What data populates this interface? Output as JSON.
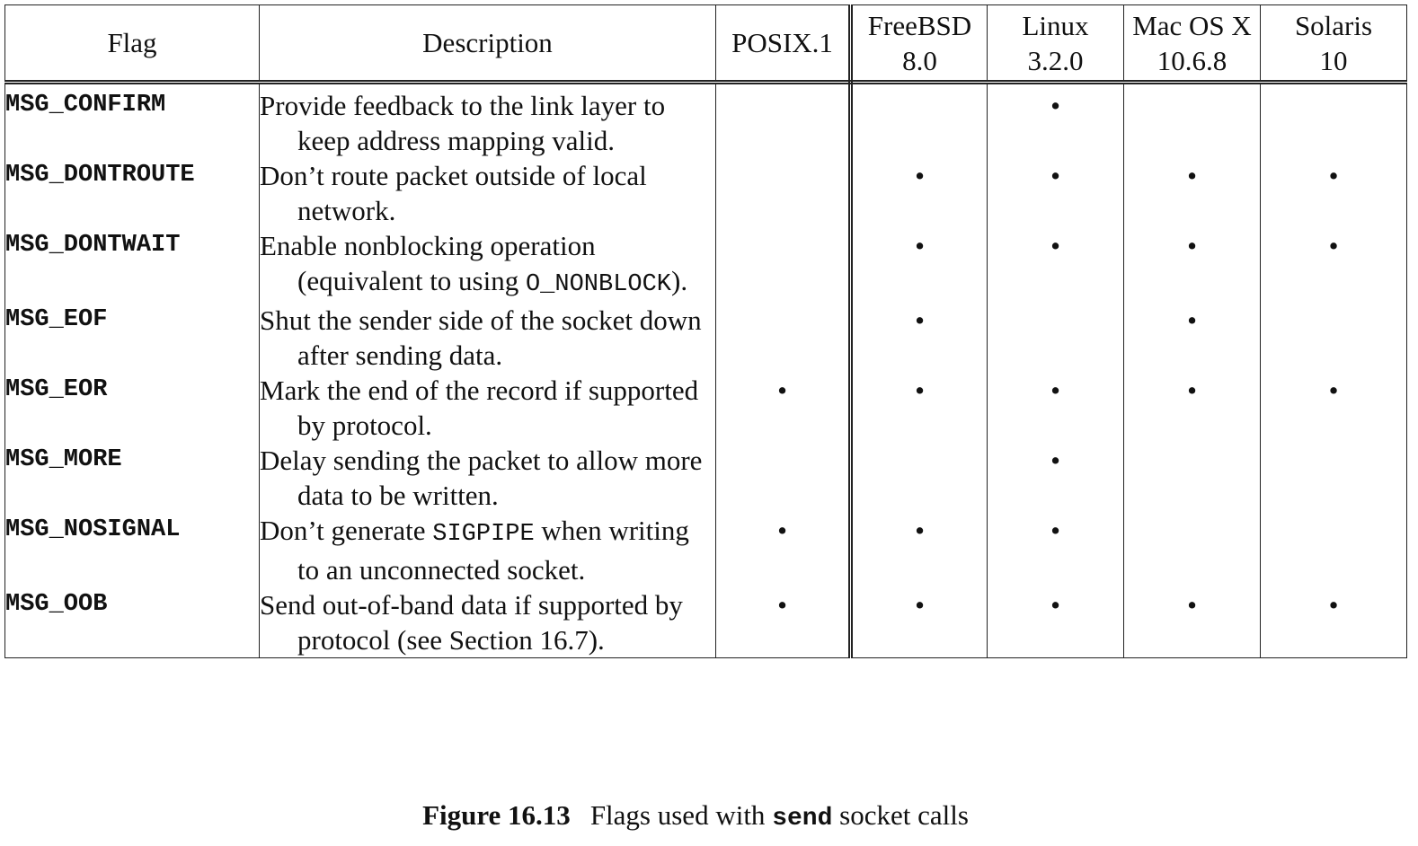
{
  "table": {
    "headers": {
      "flag": "Flag",
      "description": "Description",
      "posix": "POSIX.1",
      "freebsd": [
        "FreeBSD",
        "8.0"
      ],
      "linux": [
        "Linux",
        "3.2.0"
      ],
      "macos": [
        "Mac OS X",
        "10.6.8"
      ],
      "solaris": [
        "Solaris",
        "10"
      ]
    },
    "mark_glyph": "•",
    "rows": [
      {
        "flag": "MSG_CONFIRM",
        "description": [
          "Provide feedback to the link layer to keep address mapping valid."
        ],
        "posix": false,
        "freebsd": false,
        "linux": true,
        "macos": false,
        "solaris": false
      },
      {
        "flag": "MSG_DONTROUTE",
        "description": [
          "Don’t route packet outside of local network."
        ],
        "posix": false,
        "freebsd": true,
        "linux": true,
        "macos": true,
        "solaris": true
      },
      {
        "flag": "MSG_DONTWAIT",
        "description": [
          "Enable nonblocking operation (equivalent to using ",
          {
            "code": "O_NONBLOCK"
          },
          ")."
        ],
        "posix": false,
        "freebsd": true,
        "linux": true,
        "macos": true,
        "solaris": true
      },
      {
        "flag": "MSG_EOF",
        "description": [
          "Shut the sender side of the socket down after sending data."
        ],
        "posix": false,
        "freebsd": true,
        "linux": false,
        "macos": true,
        "solaris": false
      },
      {
        "flag": "MSG_EOR",
        "description": [
          "Mark the end of the record if supported by protocol."
        ],
        "posix": true,
        "freebsd": true,
        "linux": true,
        "macos": true,
        "solaris": true
      },
      {
        "flag": "MSG_MORE",
        "description": [
          "Delay sending the packet to allow more data to be written."
        ],
        "posix": false,
        "freebsd": false,
        "linux": true,
        "macos": false,
        "solaris": false
      },
      {
        "flag": "MSG_NOSIGNAL",
        "description": [
          "Don’t generate ",
          {
            "code": "SIGPIPE"
          },
          " when writing to an unconnected socket."
        ],
        "posix": true,
        "freebsd": true,
        "linux": true,
        "macos": false,
        "solaris": false
      },
      {
        "flag": "MSG_OOB",
        "description": [
          "Send out-of-band data if supported by protocol (see Section 16.7)."
        ],
        "posix": true,
        "freebsd": true,
        "linux": true,
        "macos": true,
        "solaris": true
      }
    ]
  },
  "caption": {
    "label": "Figure 16.13",
    "text_before": "Flags used with ",
    "code": "send",
    "text_after": " socket calls"
  }
}
